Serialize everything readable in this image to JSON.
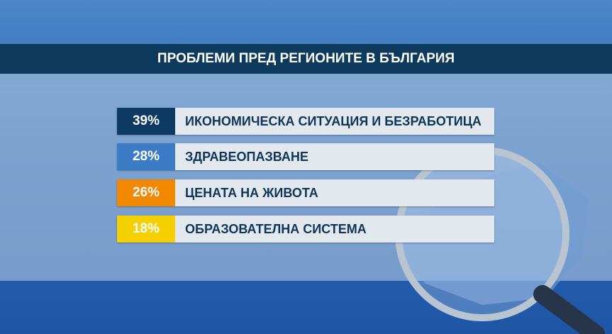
{
  "title": "ПРОБЛЕМИ ПРЕД РЕГИОНИТЕ В БЪЛГАРИЯ",
  "items": [
    {
      "percent": "39%",
      "label": "ИКОНОМИЧЕСКА СИТУАЦИЯ И БЕЗРАБОТИЦА",
      "color": "#0c3a62"
    },
    {
      "percent": "28%",
      "label": "ЗДРАВЕОПАЗВАНЕ",
      "color": "#3c7cc6"
    },
    {
      "percent": "26%",
      "label": "ЦЕНАТА НА ЖИВОТА",
      "color": "#f08800"
    },
    {
      "percent": "18%",
      "label": "ОБРАЗОВАТЕЛНА СИСТЕМА",
      "color": "#f4d000"
    }
  ]
}
